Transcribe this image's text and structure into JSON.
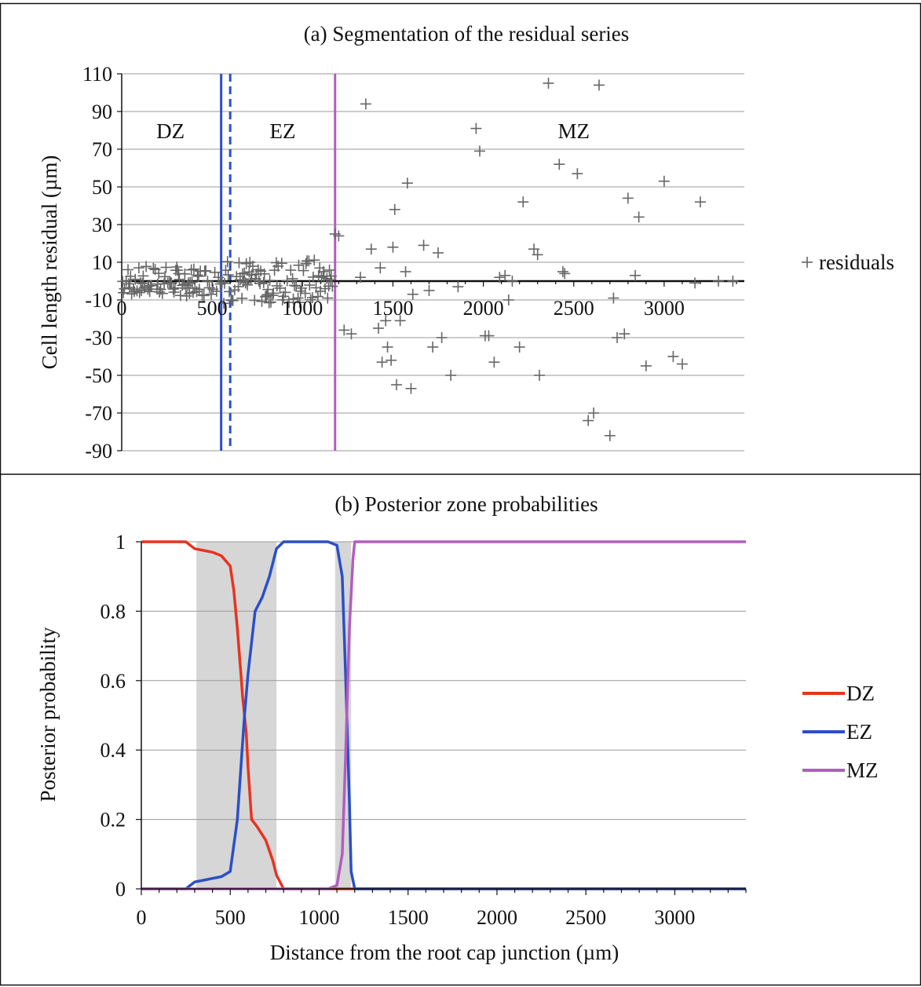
{
  "chart_data": [
    {
      "type": "scatter",
      "title": "(a) Segmentation of the residual series",
      "xlabel": "",
      "ylabel": "Cell length residual (µm)",
      "xlim": [
        0,
        3400
      ],
      "ylim": [
        -90,
        110
      ],
      "xticks": [
        "0",
        "500",
        "1000",
        "1500",
        "2000",
        "2500",
        "3000"
      ],
      "xtick_values": [
        0,
        500,
        1000,
        1500,
        2000,
        2500,
        3000
      ],
      "yticks": [
        "110",
        "90",
        "70",
        "50",
        "30",
        "10",
        "-10",
        "-30",
        "-50",
        "-70",
        "-90"
      ],
      "ytick_values": [
        110,
        90,
        70,
        50,
        30,
        10,
        -10,
        -30,
        -50,
        -70,
        -90
      ],
      "grid": true,
      "legend": "right",
      "zone_labels": [
        {
          "label": "DZ",
          "x": 270
        },
        {
          "label": "EZ",
          "x": 890
        },
        {
          "label": "MZ",
          "x": 2500
        }
      ],
      "boundaries": [
        {
          "x": 550,
          "style": "solid",
          "color": "#2a4fc7"
        },
        {
          "x": 600,
          "style": "dashed",
          "color": "#2a4fc7"
        },
        {
          "x": 1180,
          "style": "solid",
          "color": "#b25dc0"
        }
      ],
      "series": [
        {
          "name": "residuals",
          "marker": "+",
          "color": "#666666",
          "x": [
            1180,
            1200,
            1230,
            1270,
            1320,
            1350,
            1380,
            1420,
            1430,
            1440,
            1460,
            1470,
            1490,
            1500,
            1510,
            1520,
            1540,
            1570,
            1580,
            1600,
            1610,
            1670,
            1700,
            1720,
            1750,
            1770,
            1820,
            1860,
            1960,
            1980,
            2010,
            2030,
            2060,
            2090,
            2120,
            2140,
            2160,
            2200,
            2220,
            2280,
            2300,
            2310,
            2360,
            2420,
            2440,
            2450,
            2520,
            2580,
            2610,
            2640,
            2700,
            2720,
            2740,
            2780,
            2800,
            2840,
            2860,
            2900,
            3000,
            3050,
            3100,
            3170,
            3200,
            3300,
            3380
          ],
          "y": [
            25,
            24,
            -26,
            -28,
            2,
            94,
            17,
            -25,
            7,
            -43,
            -21,
            -35,
            -42,
            18,
            38,
            -55,
            -21,
            5,
            52,
            -57,
            -7,
            19,
            -5,
            -35,
            15,
            -30,
            -50,
            -3,
            81,
            69,
            -29,
            -29,
            -43,
            2,
            3,
            -10,
            0,
            -35,
            42,
            17,
            14,
            -50,
            105,
            62,
            5,
            4,
            57,
            -74,
            -70,
            104,
            -82,
            -9,
            -30,
            -28,
            44,
            3,
            34,
            -45,
            53,
            -40,
            -44,
            -1,
            42,
            0,
            0
          ]
        }
      ]
    },
    {
      "type": "line",
      "title": "(b) Posterior zone probabilities",
      "xlabel": "Distance from the root cap junction (µm)",
      "ylabel": "Posterior probability",
      "xlim": [
        0,
        3400
      ],
      "ylim": [
        0,
        1
      ],
      "xticks": [
        "0",
        "500",
        "1000",
        "1500",
        "2000",
        "2500",
        "3000"
      ],
      "xtick_values": [
        0,
        500,
        1000,
        1500,
        2000,
        2500,
        3000
      ],
      "yticks": [
        "1",
        "0.8",
        "0.6",
        "0.4",
        "0.2",
        "0"
      ],
      "ytick_values": [
        1,
        0.8,
        0.6,
        0.4,
        0.2,
        0
      ],
      "grid": true,
      "legend": "right",
      "shaded_regions": [
        [
          310,
          760
        ],
        [
          1090,
          1180
        ]
      ],
      "series": [
        {
          "name": "DZ",
          "color": "#e8331f",
          "x": [
            0,
            250,
            300,
            350,
            400,
            450,
            500,
            520,
            540,
            560,
            570,
            580,
            590,
            600,
            620,
            650,
            700,
            740,
            760,
            800,
            1200,
            3400
          ],
          "y": [
            1,
            1,
            0.98,
            0.975,
            0.97,
            0.96,
            0.93,
            0.86,
            0.75,
            0.62,
            0.55,
            0.5,
            0.45,
            0.35,
            0.2,
            0.18,
            0.14,
            0.08,
            0.04,
            0,
            0,
            0
          ]
        },
        {
          "name": "EZ",
          "color": "#2a4fc7",
          "x": [
            0,
            250,
            300,
            350,
            400,
            450,
            500,
            540,
            560,
            580,
            600,
            640,
            680,
            720,
            760,
            800,
            1050,
            1100,
            1130,
            1150,
            1170,
            1180,
            1200,
            3400
          ],
          "y": [
            0,
            0,
            0.02,
            0.025,
            0.03,
            0.035,
            0.05,
            0.2,
            0.35,
            0.5,
            0.62,
            0.8,
            0.84,
            0.9,
            0.98,
            1,
            1,
            0.99,
            0.9,
            0.6,
            0.25,
            0.05,
            0,
            0
          ]
        },
        {
          "name": "MZ",
          "color": "#b25dc0",
          "x": [
            0,
            1050,
            1100,
            1130,
            1150,
            1170,
            1190,
            1200,
            1210,
            3400
          ],
          "y": [
            0,
            0,
            0.01,
            0.1,
            0.4,
            0.75,
            0.95,
            1,
            1,
            1
          ]
        }
      ]
    }
  ]
}
